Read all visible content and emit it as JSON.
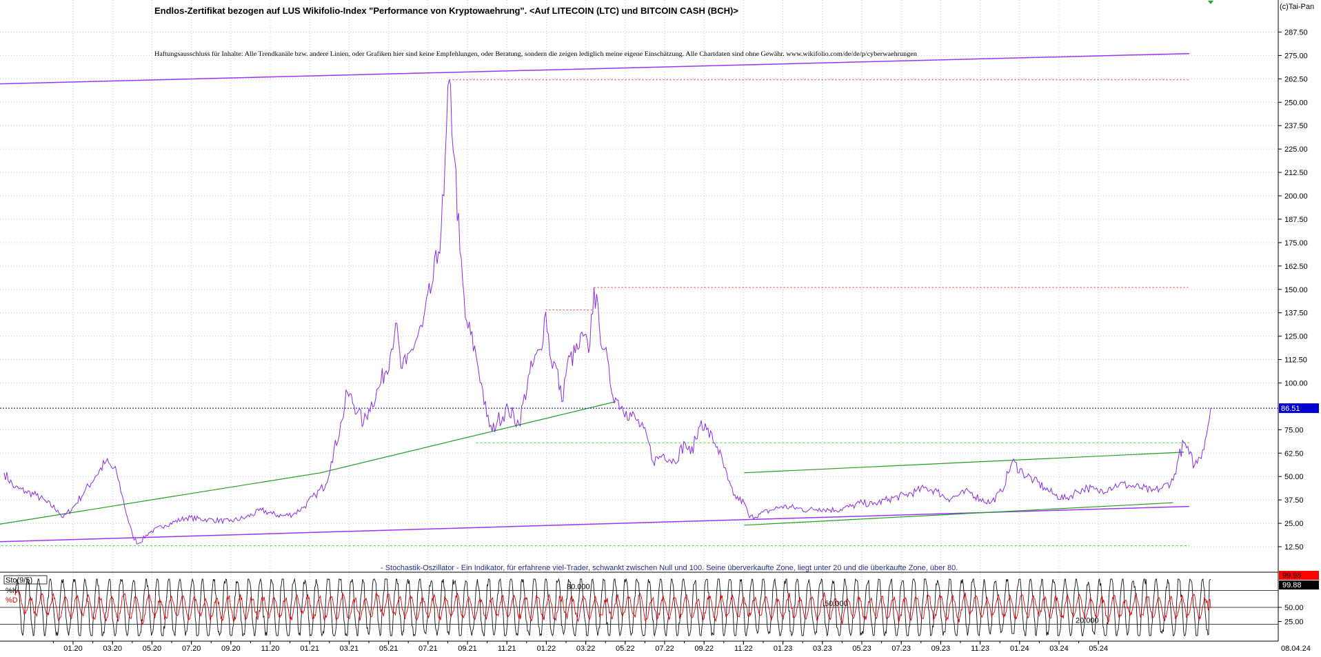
{
  "header": {
    "title": "Endlos-Zertifikat bezogen auf LUS Wikifolio-Index \"Performance von Kryptowaehrung\". <Auf LITECOIN (LTC) und BITCOIN CASH (BCH)>",
    "disclaimer": "Haftungsausschluss für Inhalte: Alle Trendkanäle bzw. andere Linien, oder Grafiken hier sind keine Empfehlungen, oder Beratung, sondern die zeigen lediglich meine eigene Einschätzung. Alle Chartdaten sind ohne Gewähr. www.wikifolio.com/de/de/p/cyberwaehrungen",
    "copyright": "(c)Tai-Pan"
  },
  "colors": {
    "price": "#8a2be2",
    "trend_purple": "#9933ff",
    "trend_green": "#1f9e1f",
    "support_green": "#33dd33",
    "resistance_red": "#ff2222",
    "last_price_bg": "#0000cc",
    "stoch_k": "#111111",
    "stoch_d": "#e00000",
    "oscillator_note": "#2b2b8f"
  },
  "chart_data": [
    {
      "type": "line",
      "ylim": [
        0,
        300
      ],
      "y_ticks": [
        "287.50",
        "275.00",
        "262.50",
        "250.00",
        "237.50",
        "225.00",
        "212.50",
        "200.00",
        "187.50",
        "175.00",
        "162.50",
        "150.00",
        "137.50",
        "125.00",
        "112.50",
        "100.00",
        "75.00",
        "62.50",
        "50.00",
        "37.50",
        "25.00",
        "12.50"
      ],
      "y_tick_values": [
        287.5,
        275,
        262.5,
        250,
        237.5,
        225,
        212.5,
        200,
        187.5,
        175,
        162.5,
        150,
        137.5,
        125,
        112.5,
        100,
        75,
        62.5,
        50,
        37.5,
        25,
        12.5
      ],
      "last_price_label": "86.51",
      "last_price": 86.51,
      "x_labels": [
        "01.20",
        "03.20",
        "05.20",
        "07.20",
        "09.20",
        "11.20",
        "01.21",
        "03.21",
        "05.21",
        "07.21",
        "09.21",
        "11.21",
        "01.22",
        "03.22",
        "05.22",
        "07.22",
        "09.22",
        "11.22",
        "01.23",
        "03.23",
        "05.23",
        "07.23",
        "09.23",
        "11.23",
        "01.24",
        "03.24",
        "05.24"
      ],
      "x_date_label": "08.04.24",
      "series": [
        {
          "points": [
            [
              0,
              52
            ],
            [
              2,
              44
            ],
            [
              4,
              42
            ],
            [
              6,
              40
            ],
            [
              8,
              36
            ],
            [
              10,
              32
            ],
            [
              11,
              28
            ],
            [
              13,
              34
            ],
            [
              15,
              42
            ],
            [
              17,
              50
            ],
            [
              19,
              58
            ],
            [
              21,
              52
            ],
            [
              22,
              40
            ],
            [
              23,
              28
            ],
            [
              24,
              18
            ],
            [
              25,
              14
            ],
            [
              27,
              20
            ],
            [
              30,
              24
            ],
            [
              34,
              28
            ],
            [
              38,
              27
            ],
            [
              42,
              26
            ],
            [
              45,
              28
            ],
            [
              48,
              32
            ],
            [
              50,
              30
            ],
            [
              52,
              29
            ],
            [
              54,
              30
            ],
            [
              56,
              34
            ],
            [
              58,
              40
            ],
            [
              60,
              46
            ],
            [
              61,
              58
            ],
            [
              63,
              80
            ],
            [
              64,
              95
            ],
            [
              66,
              85
            ],
            [
              67,
              78
            ],
            [
              68,
              86
            ],
            [
              70,
              98
            ],
            [
              72,
              115
            ],
            [
              73,
              132
            ],
            [
              74,
              108
            ],
            [
              75,
              110
            ],
            [
              76,
              118
            ],
            [
              78,
              130
            ],
            [
              80,
              155
            ],
            [
              81,
              170
            ],
            [
              82,
              200
            ],
            [
              83,
              262
            ],
            [
              84,
              220
            ],
            [
              85,
              170
            ],
            [
              86,
              135
            ],
            [
              88,
              115
            ],
            [
              89,
              100
            ],
            [
              90,
              82
            ],
            [
              91,
              74
            ],
            [
              92,
              80
            ],
            [
              94,
              86
            ],
            [
              96,
              78
            ],
            [
              98,
              105
            ],
            [
              100,
              118
            ],
            [
              101,
              138
            ],
            [
              102,
              112
            ],
            [
              103,
              108
            ],
            [
              104,
              90
            ],
            [
              105,
              110
            ],
            [
              107,
              118
            ],
            [
              108,
              125
            ],
            [
              109,
              116
            ],
            [
              110,
              151
            ],
            [
              111,
              130
            ],
            [
              112,
              118
            ],
            [
              113,
              100
            ],
            [
              114,
              92
            ],
            [
              116,
              85
            ],
            [
              118,
              80
            ],
            [
              120,
              70
            ],
            [
              121,
              58
            ],
            [
              123,
              62
            ],
            [
              125,
              58
            ],
            [
              127,
              68
            ],
            [
              128,
              62
            ],
            [
              129,
              70
            ],
            [
              130,
              80
            ],
            [
              131,
              75
            ],
            [
              133,
              66
            ],
            [
              135,
              48
            ],
            [
              136,
              40
            ],
            [
              138,
              36
            ],
            [
              139,
              28
            ],
            [
              141,
              30
            ],
            [
              143,
              32
            ],
            [
              145,
              34
            ],
            [
              148,
              33
            ],
            [
              150,
              32
            ],
            [
              152,
              33
            ],
            [
              155,
              32
            ],
            [
              158,
              34
            ],
            [
              160,
              36
            ],
            [
              162,
              35
            ],
            [
              165,
              38
            ],
            [
              168,
              40
            ],
            [
              170,
              42
            ],
            [
              172,
              44
            ],
            [
              174,
              42
            ],
            [
              176,
              38
            ],
            [
              178,
              40
            ],
            [
              180,
              42
            ],
            [
              182,
              38
            ],
            [
              184,
              36
            ],
            [
              186,
              42
            ],
            [
              188,
              58
            ],
            [
              190,
              52
            ],
            [
              192,
              48
            ],
            [
              194,
              44
            ],
            [
              196,
              40
            ],
            [
              198,
              38
            ],
            [
              200,
              42
            ],
            [
              202,
              44
            ],
            [
              204,
              42
            ],
            [
              206,
              44
            ],
            [
              208,
              46
            ],
            [
              210,
              45
            ],
            [
              212,
              44
            ],
            [
              214,
              42
            ],
            [
              216,
              44
            ],
            [
              218,
              48
            ],
            [
              219,
              60
            ],
            [
              220,
              68
            ],
            [
              221,
              62
            ],
            [
              222,
              56
            ],
            [
              223,
              60
            ],
            [
              224,
              70
            ],
            [
              225,
              86.51
            ]
          ]
        }
      ],
      "lines": {
        "upper_trend": [
          [
            -26,
            258
          ],
          [
            221,
            276
          ]
        ],
        "lower_trend": [
          [
            -26,
            13
          ],
          [
            221,
            34
          ]
        ],
        "rise_2020_2021": [
          [
            -2,
            24
          ],
          [
            59,
            52
          ],
          [
            114,
            90
          ]
        ],
        "green_channel_top": [
          [
            138,
            52
          ],
          [
            220,
            63
          ]
        ],
        "green_channel_bottom": [
          [
            138,
            24
          ],
          [
            218,
            36
          ]
        ],
        "resistance_2021": [
          [
            83,
            262
          ],
          [
            221,
            262
          ]
        ],
        "resistance_2021b": [
          [
            101,
            139
          ],
          [
            110,
            139
          ]
        ],
        "resistance_2021c": [
          [
            110,
            151
          ],
          [
            221,
            151
          ]
        ],
        "support_2021": [
          [
            88,
            68
          ],
          [
            221,
            68
          ]
        ],
        "support_low": [
          [
            -26,
            13
          ],
          [
            221,
            13
          ]
        ]
      }
    },
    {
      "type": "line",
      "title": "- Stochastik-Oszillator - Ein Indikator, für erfahrene viel-Trader, schwankt zwischen Null und 100. Seine überverkaufte Zone, liegt unter 20 und die überkaufte Zone, über 80.",
      "indicator_label": "Sto(9/5)",
      "legend": [
        "%K",
        "%D"
      ],
      "ylim": [
        0,
        100
      ],
      "y_ticks": [
        "50.00",
        "25.00"
      ],
      "y_tick_values": [
        50,
        25
      ],
      "value_k_label": "99.98",
      "value_d_label": "99.88",
      "level_labels": [
        "80.000",
        "50.000",
        "20.000"
      ],
      "levels": [
        80,
        50,
        20
      ],
      "k_cycles": 104,
      "last_value": 99.98
    }
  ]
}
